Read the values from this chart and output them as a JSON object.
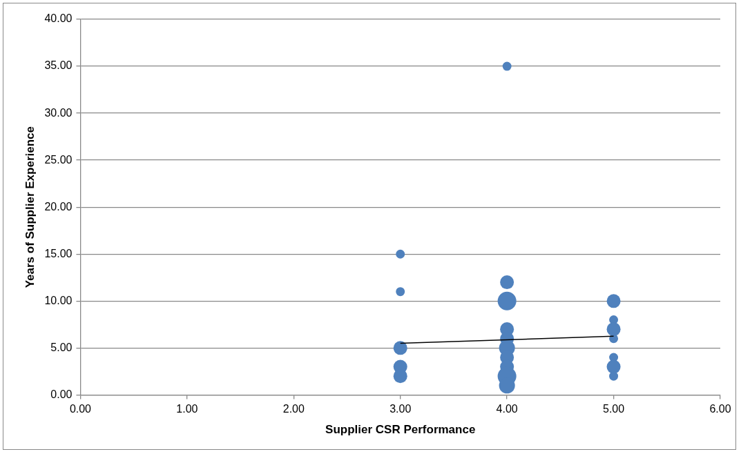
{
  "chart_data": {
    "type": "bubble",
    "xlabel": "Supplier CSR Performance",
    "ylabel": "Years of Supplier Experience",
    "xlim": [
      0,
      6
    ],
    "ylim": [
      0,
      40
    ],
    "xticks": [
      {
        "value": 0,
        "label": "0.00"
      },
      {
        "value": 1,
        "label": "1.00"
      },
      {
        "value": 2,
        "label": "2.00"
      },
      {
        "value": 3,
        "label": "3.00"
      },
      {
        "value": 4,
        "label": "4.00"
      },
      {
        "value": 5,
        "label": "5.00"
      },
      {
        "value": 6,
        "label": "6.00"
      }
    ],
    "yticks": [
      {
        "value": 0,
        "label": "0.00"
      },
      {
        "value": 5,
        "label": "5.00"
      },
      {
        "value": 10,
        "label": "10.00"
      },
      {
        "value": 15,
        "label": "15.00"
      },
      {
        "value": 20,
        "label": "20.00"
      },
      {
        "value": 25,
        "label": "25.00"
      },
      {
        "value": 30,
        "label": "30.00"
      },
      {
        "value": 35,
        "label": "35.00"
      },
      {
        "value": 40,
        "label": "40.00"
      }
    ],
    "grid": "y",
    "legend": false,
    "series": [
      {
        "color": "#4f81bd",
        "x": [
          3,
          3,
          3,
          3,
          3,
          4,
          4,
          4,
          4,
          4,
          4,
          4,
          4,
          4,
          4,
          5,
          5,
          5,
          5,
          5,
          5,
          5
        ],
        "values": [
          15,
          11,
          5,
          3,
          2,
          35,
          12,
          10,
          7,
          6,
          5,
          4,
          3,
          2,
          1,
          10,
          8,
          7,
          6,
          4,
          3,
          2
        ],
        "sizes": [
          0.23,
          0.23,
          0.55,
          0.55,
          0.55,
          0.23,
          0.55,
          1,
          0.55,
          0.55,
          0.73,
          0.55,
          0.55,
          1,
          0.73,
          0.55,
          0.23,
          0.55,
          0.23,
          0.23,
          0.55,
          0.23
        ]
      },
      {
        "type": "line",
        "color": "#000000",
        "x": [
          3,
          5
        ],
        "values": [
          5.5,
          6.25
        ],
        "marker": "none"
      }
    ]
  }
}
